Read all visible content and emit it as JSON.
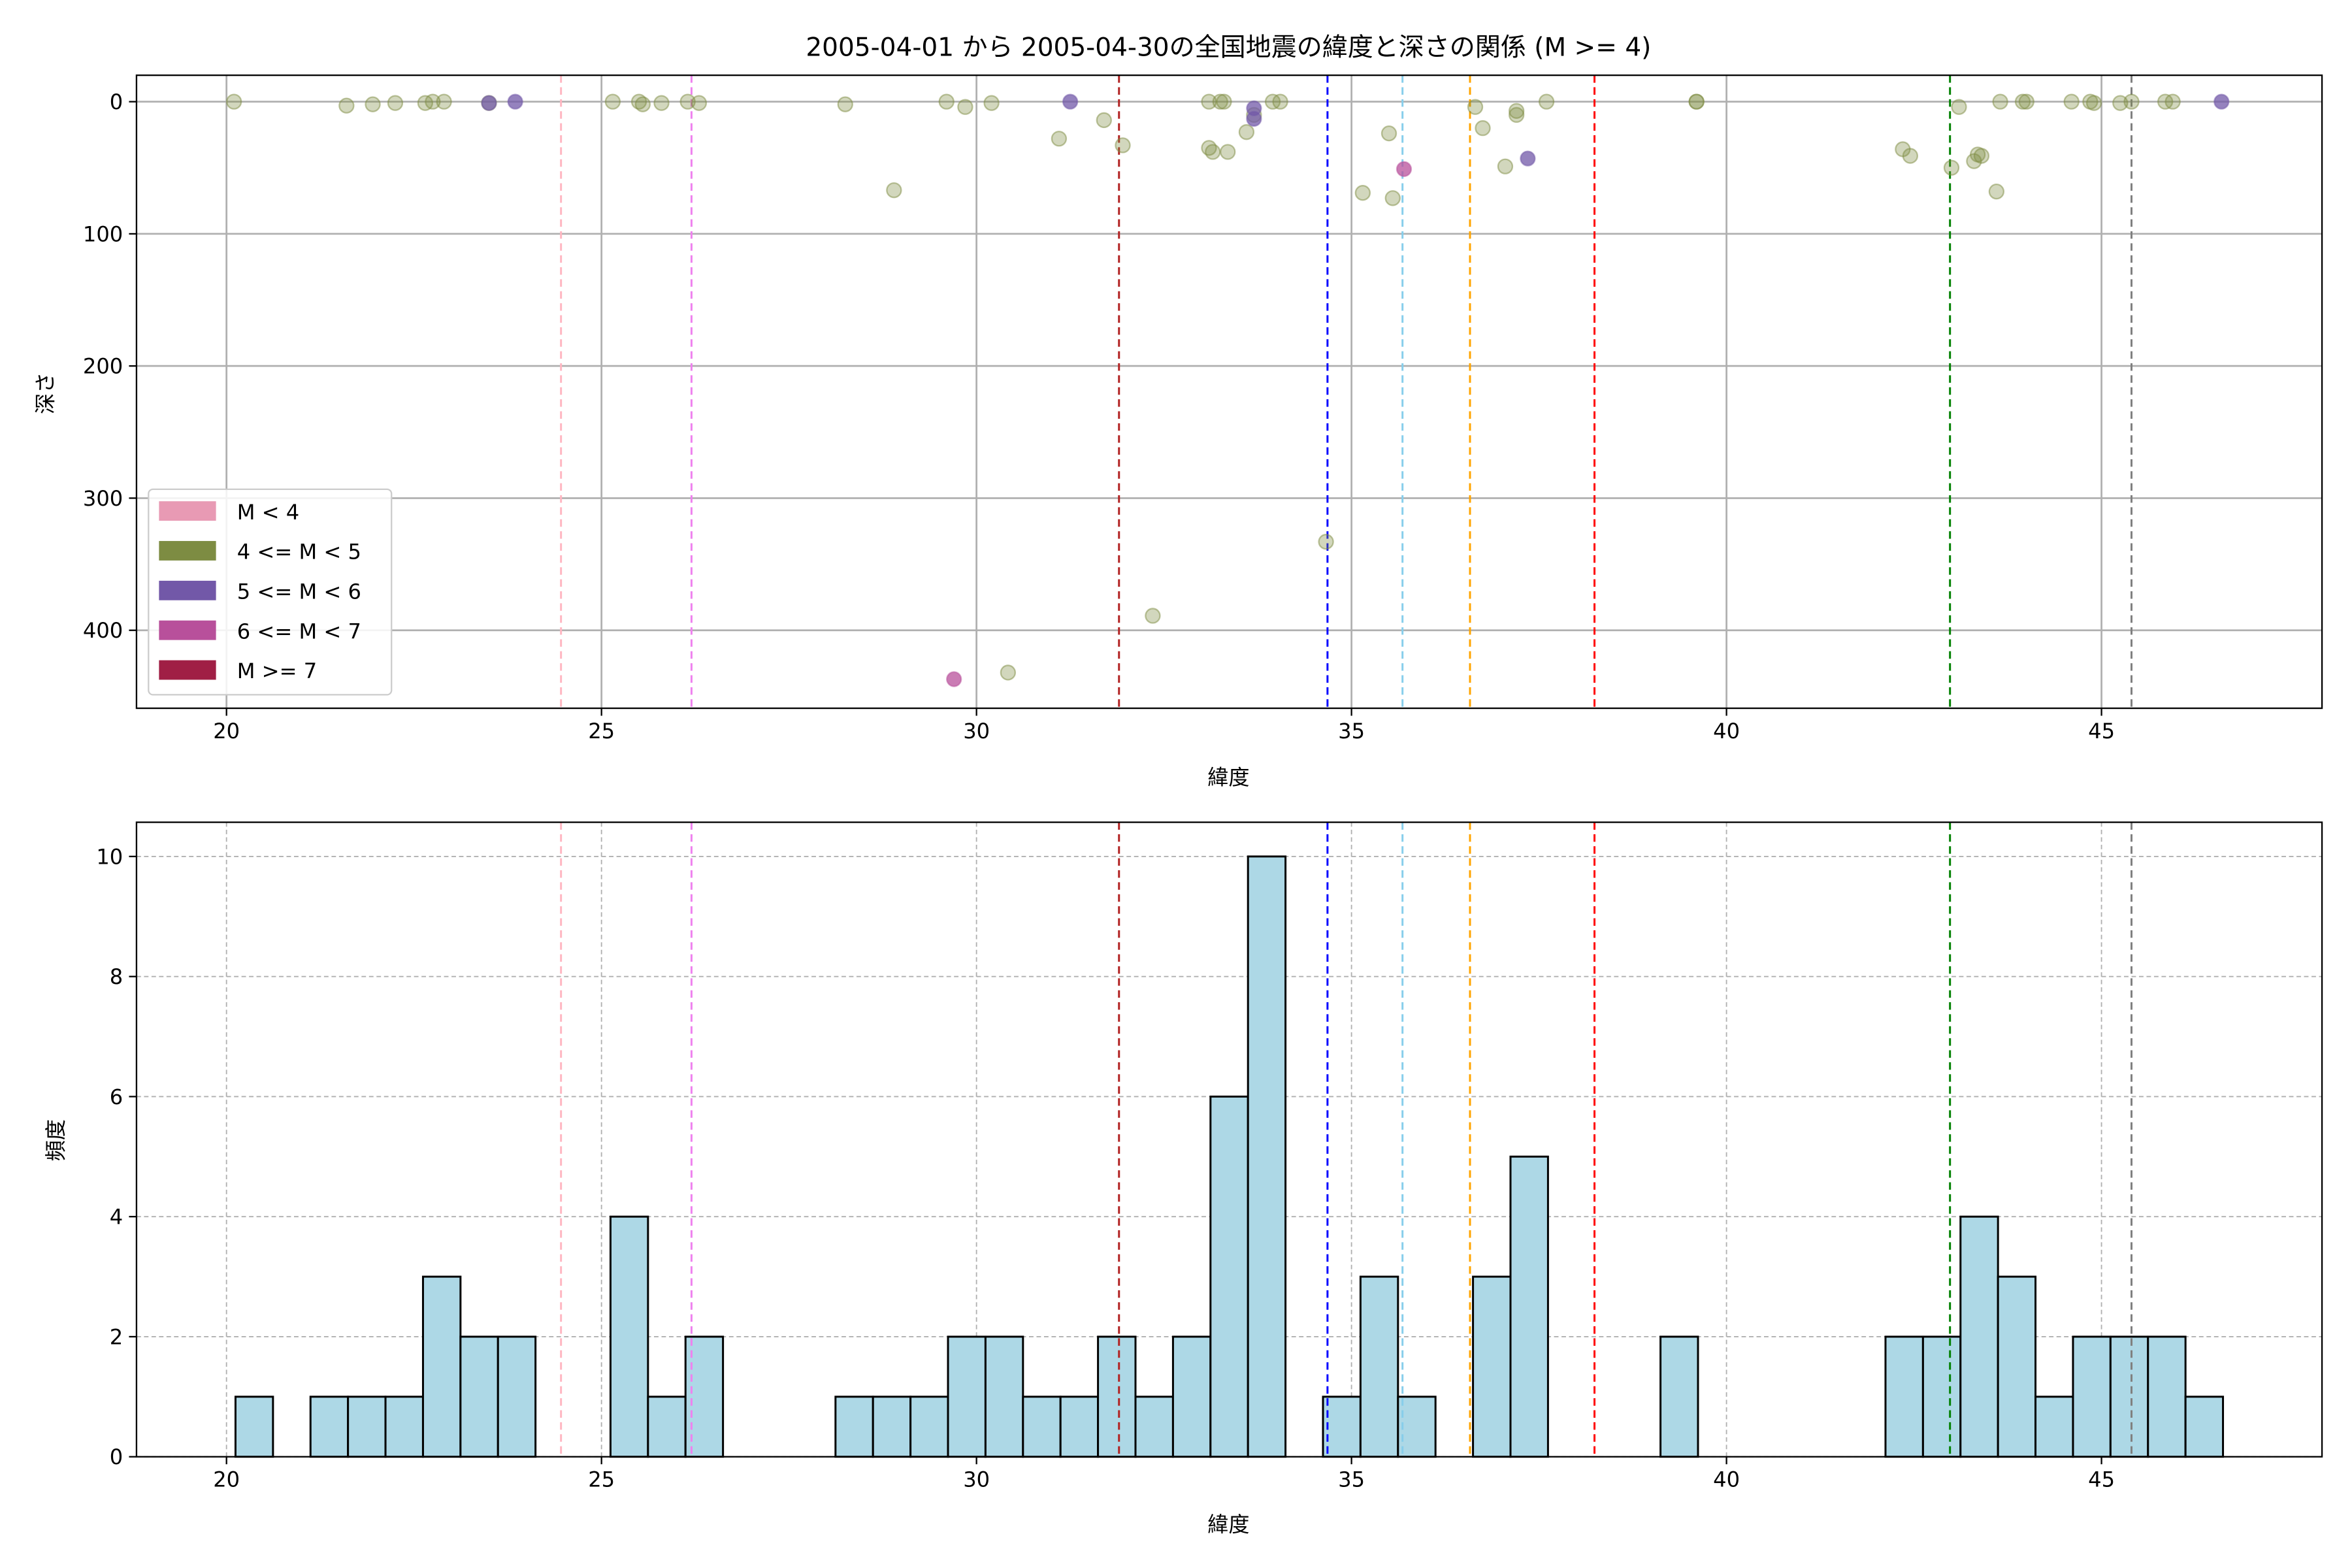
{
  "chart_data": [
    {
      "type": "scatter",
      "title": "2005-04-01 から 2005-04-30の全国地震の緯度と深さの関係 (M >= 4)",
      "xlabel": "緯度",
      "ylabel": "深さ",
      "xlim": [
        18.8,
        47.94
      ],
      "ylim": [
        459,
        -20
      ],
      "y_inverted": true,
      "xticks": [
        20,
        25,
        30,
        35,
        40,
        45
      ],
      "yticks": [
        0,
        100,
        200,
        300,
        400
      ],
      "grid": true,
      "legend_position": "lower-left",
      "legend": [
        {
          "label": "M < 4",
          "color": "#e89ab4"
        },
        {
          "label": "4 <= M < 5",
          "color": "#7d8c42"
        },
        {
          "label": "5 <= M < 6",
          "color": "#7258a8"
        },
        {
          "label": "6 <= M < 7",
          "color": "#b8509b"
        },
        {
          "label": "M >= 7",
          "color": "#a01f45"
        }
      ],
      "points": [
        {
          "x": 20.1,
          "y": 0,
          "class": 1
        },
        {
          "x": 21.6,
          "y": 3,
          "class": 1
        },
        {
          "x": 21.95,
          "y": 2,
          "class": 1
        },
        {
          "x": 22.25,
          "y": 1,
          "class": 1
        },
        {
          "x": 22.65,
          "y": 1,
          "class": 1
        },
        {
          "x": 22.75,
          "y": 0,
          "class": 1
        },
        {
          "x": 22.9,
          "y": 0,
          "class": 1
        },
        {
          "x": 23.5,
          "y": 1,
          "class": 1
        },
        {
          "x": 23.5,
          "y": 1,
          "class": 2
        },
        {
          "x": 23.85,
          "y": 0,
          "class": 2
        },
        {
          "x": 25.15,
          "y": 0,
          "class": 1
        },
        {
          "x": 25.5,
          "y": 0,
          "class": 1
        },
        {
          "x": 25.55,
          "y": 2,
          "class": 1
        },
        {
          "x": 25.8,
          "y": 1,
          "class": 1
        },
        {
          "x": 26.15,
          "y": 0,
          "class": 1
        },
        {
          "x": 26.3,
          "y": 1,
          "class": 1
        },
        {
          "x": 28.25,
          "y": 2,
          "class": 1
        },
        {
          "x": 28.9,
          "y": 67,
          "class": 1
        },
        {
          "x": 29.6,
          "y": 0,
          "class": 1
        },
        {
          "x": 29.85,
          "y": 4,
          "class": 1
        },
        {
          "x": 30.2,
          "y": 1,
          "class": 1
        },
        {
          "x": 31.1,
          "y": 28,
          "class": 1
        },
        {
          "x": 31.25,
          "y": 0,
          "class": 2
        },
        {
          "x": 31.7,
          "y": 14,
          "class": 1
        },
        {
          "x": 31.95,
          "y": 33,
          "class": 1
        },
        {
          "x": 33.1,
          "y": 0,
          "class": 1
        },
        {
          "x": 33.1,
          "y": 35,
          "class": 1
        },
        {
          "x": 33.15,
          "y": 38,
          "class": 1
        },
        {
          "x": 33.25,
          "y": 0,
          "class": 1
        },
        {
          "x": 33.3,
          "y": 0,
          "class": 1
        },
        {
          "x": 33.35,
          "y": 38,
          "class": 1
        },
        {
          "x": 33.6,
          "y": 23,
          "class": 1
        },
        {
          "x": 33.7,
          "y": 10,
          "class": 1
        },
        {
          "x": 33.7,
          "y": 5,
          "class": 2
        },
        {
          "x": 33.7,
          "y": 13,
          "class": 2
        },
        {
          "x": 33.95,
          "y": 0,
          "class": 1
        },
        {
          "x": 34.05,
          "y": 0,
          "class": 1
        },
        {
          "x": 34.66,
          "y": 333,
          "class": 1
        },
        {
          "x": 35.15,
          "y": 69,
          "class": 1
        },
        {
          "x": 35.5,
          "y": 24,
          "class": 1
        },
        {
          "x": 35.55,
          "y": 73,
          "class": 1
        },
        {
          "x": 35.7,
          "y": 51,
          "class": 3
        },
        {
          "x": 36.65,
          "y": 4,
          "class": 1
        },
        {
          "x": 36.75,
          "y": 20,
          "class": 1
        },
        {
          "x": 37.05,
          "y": 49,
          "class": 1
        },
        {
          "x": 37.2,
          "y": 7,
          "class": 1
        },
        {
          "x": 37.2,
          "y": 10,
          "class": 1
        },
        {
          "x": 37.35,
          "y": 43,
          "class": 2
        },
        {
          "x": 37.6,
          "y": 0,
          "class": 1
        },
        {
          "x": 39.6,
          "y": 0,
          "class": 1
        },
        {
          "x": 39.6,
          "y": 0,
          "class": 1
        },
        {
          "x": 42.35,
          "y": 36,
          "class": 1
        },
        {
          "x": 42.45,
          "y": 41,
          "class": 1
        },
        {
          "x": 43.0,
          "y": 50,
          "class": 1
        },
        {
          "x": 43.1,
          "y": 4,
          "class": 1
        },
        {
          "x": 43.3,
          "y": 45,
          "class": 1
        },
        {
          "x": 43.35,
          "y": 40,
          "class": 1
        },
        {
          "x": 43.4,
          "y": 41,
          "class": 1
        },
        {
          "x": 43.6,
          "y": 68,
          "class": 1
        },
        {
          "x": 43.65,
          "y": 0,
          "class": 1
        },
        {
          "x": 43.95,
          "y": 0,
          "class": 1
        },
        {
          "x": 44.0,
          "y": 0,
          "class": 1
        },
        {
          "x": 44.6,
          "y": 0,
          "class": 1
        },
        {
          "x": 44.85,
          "y": 0,
          "class": 1
        },
        {
          "x": 44.9,
          "y": 1,
          "class": 1
        },
        {
          "x": 45.25,
          "y": 1,
          "class": 1
        },
        {
          "x": 45.4,
          "y": 0,
          "class": 1
        },
        {
          "x": 45.85,
          "y": 0,
          "class": 1
        },
        {
          "x": 45.95,
          "y": 0,
          "class": 1
        },
        {
          "x": 46.6,
          "y": 0,
          "class": 2
        },
        {
          "x": 32.35,
          "y": 389,
          "class": 1
        },
        {
          "x": 29.7,
          "y": 437,
          "class": 3
        },
        {
          "x": 30.42,
          "y": 432,
          "class": 1
        }
      ]
    },
    {
      "type": "bar",
      "subtype": "histogram",
      "xlabel": "緯度",
      "ylabel": "頻度",
      "xlim": [
        18.8,
        47.94
      ],
      "ylim": [
        0,
        10.57
      ],
      "xticks": [
        20,
        25,
        30,
        35,
        40,
        45
      ],
      "yticks": [
        0,
        2,
        4,
        6,
        8,
        10
      ],
      "grid": true,
      "bar_color": "#add8e6",
      "bin_start": 20.12,
      "bin_width": 0.5,
      "counts": [
        1,
        0,
        1,
        1,
        1,
        3,
        2,
        2,
        0,
        0,
        4,
        1,
        2,
        0,
        0,
        0,
        1,
        1,
        1,
        2,
        2,
        1,
        1,
        2,
        1,
        2,
        6,
        10,
        0,
        1,
        3,
        1,
        0,
        3,
        5,
        0,
        0,
        0,
        2,
        0,
        0,
        0,
        0,
        0,
        2,
        2,
        4,
        3,
        1,
        2,
        2,
        2,
        1
      ]
    }
  ],
  "reference_lines": [
    {
      "x": 24.46,
      "color": "#ffb6c1"
    },
    {
      "x": 26.2,
      "color": "#ee82ee"
    },
    {
      "x": 31.9,
      "color": "#b22222"
    },
    {
      "x": 34.68,
      "color": "#0000ff"
    },
    {
      "x": 35.68,
      "color": "#87ceeb"
    },
    {
      "x": 36.58,
      "color": "#ffa500"
    },
    {
      "x": 38.24,
      "color": "#ff0000"
    },
    {
      "x": 42.98,
      "color": "#008000"
    },
    {
      "x": 45.4,
      "color": "#808080"
    }
  ]
}
